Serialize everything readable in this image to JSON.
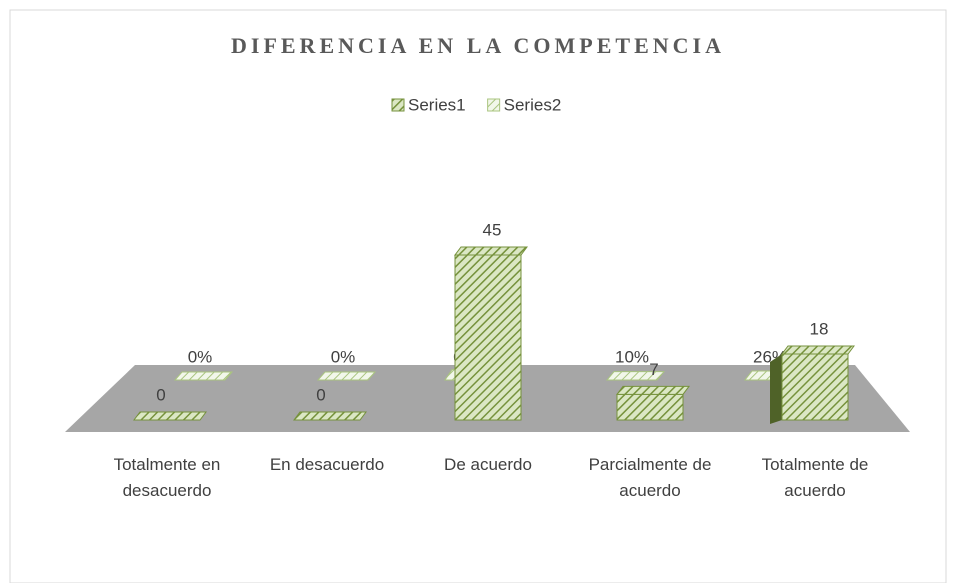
{
  "chart_data": {
    "type": "bar3d",
    "title": "DIFERENCIA EN LA COMPETENCIA",
    "categories": [
      "Totalmente en desacuerdo",
      "En desacuerdo",
      "De acuerdo",
      "Parcialmente de acuerdo",
      "Totalmente de acuerdo"
    ],
    "series": [
      {
        "name": "Series1",
        "color": "#76923c",
        "values": [
          0,
          0,
          45,
          7,
          18
        ]
      },
      {
        "name": "Series2",
        "color": "#a9c47f",
        "values": [
          0,
          0,
          0.64,
          0.1,
          0.26
        ],
        "value_labels": [
          "0%",
          "0%",
          "64%",
          "10%",
          "26%"
        ]
      }
    ],
    "legend": "top"
  }
}
